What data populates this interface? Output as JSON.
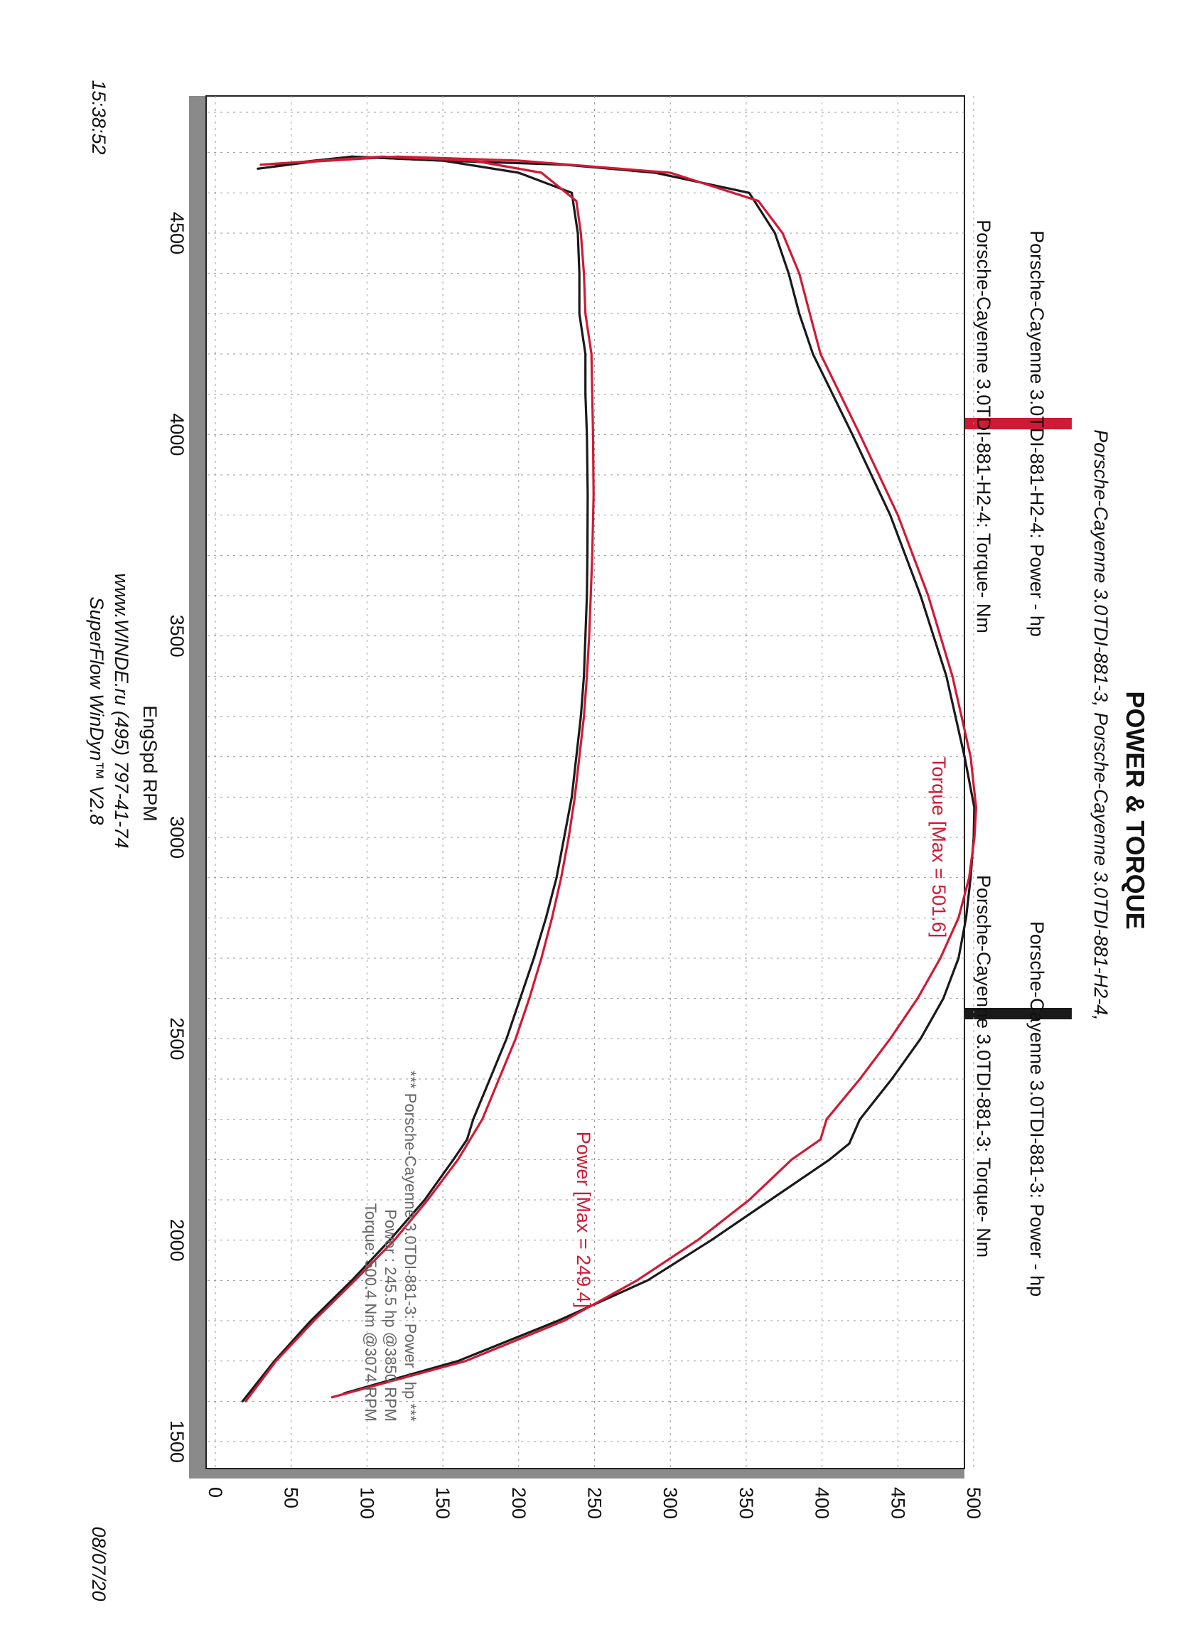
{
  "header": {
    "title": "POWER & TORQUE",
    "subtitle": "Porsche-Cayenne 3.0TDI-881-3, Porsche-Cayenne 3.0TDI-881-H2-4,"
  },
  "legend": {
    "run1_power": "Porsche-Cayenne 3.0TDI-881-3: Power -  hp",
    "run1_torque": "Porsche-Cayenne 3.0TDI-881-3: Torque-  Nm",
    "run2_power": "Porsche-Cayenne 3.0TDI-881-H2-4: Power -  hp",
    "run2_torque": "Porsche-Cayenne 3.0TDI-881-H2-4: Torque-  Nm"
  },
  "info_box": {
    "line1": "*** Porsche-Cayenne 3.0TDI-881-3: Power -  hp   ***",
    "line2": "Power :  245.5 hp      @3850 RPM",
    "line3": "Torque:  500.4 Nm     @3074 RPM"
  },
  "annotations": {
    "torque_max": "Torque [Max = 501.6]",
    "power_max": "Power  [Max = 249.4]"
  },
  "footer": {
    "website": "www.WINDE.ru  (495) 797-41-74",
    "software": "SuperFlow WinDyn™ V2.8",
    "date": "08/07/20",
    "time": "15:38:52"
  },
  "colors": {
    "run1": "#1a1a1a",
    "run2": "#d01a35",
    "frame_shadow": "#8a8a8a"
  },
  "chart_data": {
    "type": "line",
    "xlabel": "EngSpd  RPM",
    "xlim": [
      1500,
      4800
    ],
    "ylim": [
      0,
      500
    ],
    "x_ticks": [
      1500,
      2000,
      2500,
      3000,
      3500,
      4000,
      4500
    ],
    "y_ticks": [
      0,
      50,
      100,
      150,
      200,
      250,
      300,
      350,
      400,
      450,
      500
    ],
    "grid": true,
    "series": [
      {
        "name": "Porsche-Cayenne 3.0TDI-881-3: Torque-  Nm",
        "color": "#1a1a1a",
        "points": [
          [
            1620,
            85
          ],
          [
            1700,
            160
          ],
          [
            1800,
            226
          ],
          [
            1900,
            285
          ],
          [
            2000,
            327
          ],
          [
            2100,
            366
          ],
          [
            2200,
            405
          ],
          [
            2240,
            418
          ],
          [
            2300,
            425
          ],
          [
            2400,
            446
          ],
          [
            2500,
            465
          ],
          [
            2600,
            480
          ],
          [
            2700,
            490
          ],
          [
            2800,
            495
          ],
          [
            2900,
            498
          ],
          [
            3000,
            500
          ],
          [
            3074,
            500.4
          ],
          [
            3200,
            494
          ],
          [
            3400,
            482
          ],
          [
            3600,
            465
          ],
          [
            3800,
            445
          ],
          [
            4000,
            420
          ],
          [
            4200,
            394
          ],
          [
            4300,
            385
          ],
          [
            4400,
            378
          ],
          [
            4500,
            369
          ],
          [
            4600,
            352
          ],
          [
            4650,
            290
          ],
          [
            4670,
            230
          ],
          [
            4680,
            150
          ],
          [
            4690,
            90
          ],
          [
            4660,
            28
          ]
        ]
      },
      {
        "name": "Porsche-Cayenne 3.0TDI-881-H2-4: Torque-  Nm",
        "color": "#d01a35",
        "points": [
          [
            1610,
            77
          ],
          [
            1700,
            165
          ],
          [
            1800,
            230
          ],
          [
            1900,
            278
          ],
          [
            2000,
            318
          ],
          [
            2100,
            352
          ],
          [
            2200,
            380
          ],
          [
            2250,
            399
          ],
          [
            2300,
            403
          ],
          [
            2400,
            425
          ],
          [
            2500,
            445
          ],
          [
            2600,
            463
          ],
          [
            2700,
            478
          ],
          [
            2800,
            490
          ],
          [
            2900,
            497
          ],
          [
            3000,
            500.5
          ],
          [
            3074,
            501.6
          ],
          [
            3200,
            498
          ],
          [
            3400,
            486
          ],
          [
            3600,
            470
          ],
          [
            3800,
            450
          ],
          [
            4000,
            425
          ],
          [
            4200,
            399
          ],
          [
            4300,
            392
          ],
          [
            4400,
            385
          ],
          [
            4500,
            374
          ],
          [
            4580,
            358
          ],
          [
            4650,
            300
          ],
          [
            4680,
            200
          ],
          [
            4690,
            120
          ],
          [
            4670,
            30
          ]
        ]
      },
      {
        "name": "Porsche-Cayenne 3.0TDI-881-3: Power -  hp",
        "color": "#1a1a1a",
        "points": [
          [
            1600,
            18
          ],
          [
            1700,
            39
          ],
          [
            1800,
            63
          ],
          [
            1900,
            90
          ],
          [
            2000,
            115
          ],
          [
            2100,
            138
          ],
          [
            2200,
            157
          ],
          [
            2250,
            166
          ],
          [
            2300,
            170
          ],
          [
            2400,
            181
          ],
          [
            2500,
            192
          ],
          [
            2600,
            201
          ],
          [
            2700,
            210
          ],
          [
            2800,
            218
          ],
          [
            2900,
            225
          ],
          [
            3000,
            230
          ],
          [
            3100,
            235
          ],
          [
            3200,
            238
          ],
          [
            3300,
            241
          ],
          [
            3400,
            243
          ],
          [
            3500,
            244
          ],
          [
            3600,
            245
          ],
          [
            3700,
            245.3
          ],
          [
            3850,
            245.5
          ],
          [
            4000,
            245
          ],
          [
            4100,
            244
          ],
          [
            4200,
            244
          ],
          [
            4300,
            240
          ],
          [
            4400,
            240
          ],
          [
            4500,
            239
          ],
          [
            4600,
            235
          ],
          [
            4650,
            200
          ],
          [
            4680,
            150
          ],
          [
            4690,
            90
          ],
          [
            4670,
            40
          ]
        ]
      },
      {
        "name": "Porsche-Cayenne 3.0TDI-881-H2-4: Power -  hp",
        "color": "#d01a35",
        "points": [
          [
            1600,
            20
          ],
          [
            1700,
            40
          ],
          [
            1800,
            65
          ],
          [
            1900,
            92
          ],
          [
            2000,
            118
          ],
          [
            2100,
            140
          ],
          [
            2200,
            160
          ],
          [
            2300,
            176
          ],
          [
            2400,
            187
          ],
          [
            2500,
            198
          ],
          [
            2600,
            207
          ],
          [
            2700,
            215
          ],
          [
            2800,
            222
          ],
          [
            2900,
            228
          ],
          [
            3000,
            233
          ],
          [
            3100,
            237
          ],
          [
            3200,
            240
          ],
          [
            3300,
            243
          ],
          [
            3400,
            245
          ],
          [
            3500,
            246.5
          ],
          [
            3600,
            247.5
          ],
          [
            3700,
            248.5
          ],
          [
            3850,
            249.4
          ],
          [
            4000,
            249
          ],
          [
            4100,
            248.5
          ],
          [
            4200,
            248
          ],
          [
            4300,
            244
          ],
          [
            4400,
            243
          ],
          [
            4500,
            241
          ],
          [
            4580,
            238
          ],
          [
            4650,
            215
          ],
          [
            4680,
            170
          ],
          [
            4690,
            110
          ],
          [
            4670,
            30
          ]
        ]
      }
    ]
  }
}
